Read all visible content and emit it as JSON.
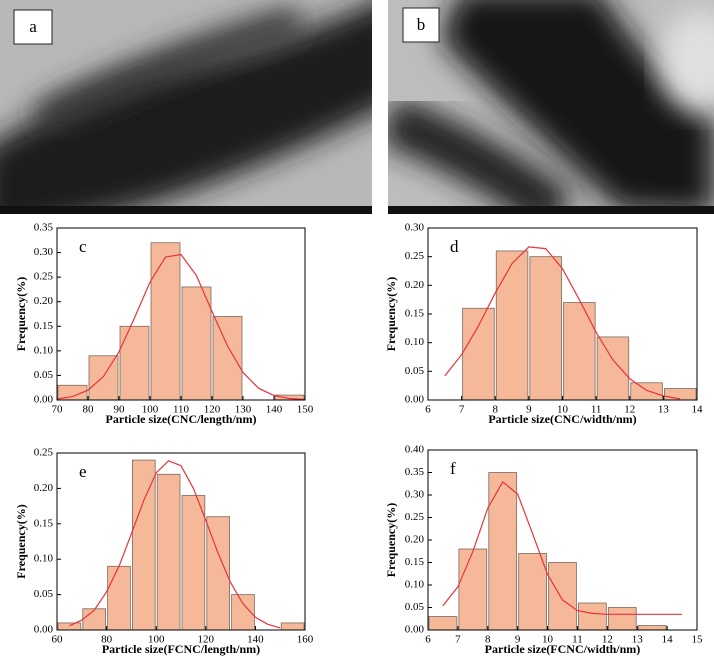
{
  "images": [
    {
      "label": "a"
    },
    {
      "label": "b"
    }
  ],
  "chart_data": [
    {
      "type": "histogram",
      "label": "c",
      "xlabel": "Particle size(CNC/length/nm)",
      "ylabel": "Frequency(%)",
      "bins": [
        70,
        80,
        90,
        100,
        110,
        120,
        130,
        140,
        150
      ],
      "values": [
        0.03,
        0.09,
        0.15,
        0.32,
        0.23,
        0.17,
        0,
        0.01
      ],
      "color": "#f5b898",
      "xlim": [
        70,
        150
      ],
      "xticks": [
        70,
        80,
        90,
        100,
        110,
        120,
        130,
        140,
        150
      ],
      "ylim": [
        0,
        0.35
      ],
      "yticks": [
        {
          "value": 0,
          "label": "0.00"
        },
        {
          "value": 0.05,
          "label": "0.05"
        },
        {
          "value": 0.1,
          "label": "0.10"
        },
        {
          "value": 0.15,
          "label": "0.15"
        },
        {
          "value": 0.2,
          "label": "0.20"
        },
        {
          "value": 0.25,
          "label": "0.25"
        },
        {
          "value": 0.3,
          "label": "0.30"
        },
        {
          "value": 0.35,
          "label": "0.35"
        }
      ],
      "fit": {
        "color": "#e8333d",
        "x": [
          70,
          75,
          80,
          85,
          90,
          95,
          100,
          105,
          110,
          115,
          120,
          125,
          130,
          135,
          140,
          145,
          150
        ],
        "values": [
          0.002,
          0.007,
          0.02,
          0.048,
          0.098,
          0.167,
          0.24,
          0.291,
          0.296,
          0.253,
          0.18,
          0.11,
          0.056,
          0.024,
          0.009,
          0.003,
          0.001
        ]
      }
    },
    {
      "type": "histogram",
      "label": "d",
      "xlabel": "Particle size(CNC/width/nm)",
      "ylabel": "Frequency(%)",
      "bins": [
        7,
        8,
        9,
        10,
        11,
        12,
        13,
        14
      ],
      "values": [
        0.16,
        0.26,
        0.25,
        0.17,
        0.11,
        0.03,
        0.02
      ],
      "color": "#f5b898",
      "xlim": [
        6,
        14
      ],
      "xticks": [
        6,
        7,
        8,
        9,
        10,
        11,
        12,
        13,
        14
      ],
      "ylim": [
        0,
        0.3
      ],
      "yticks": [
        {
          "value": 0,
          "label": "0.00"
        },
        {
          "value": 0.05,
          "label": "0.05"
        },
        {
          "value": 0.1,
          "label": "0.10"
        },
        {
          "value": 0.15,
          "label": "0.15"
        },
        {
          "value": 0.2,
          "label": "0.20"
        },
        {
          "value": 0.25,
          "label": "0.25"
        },
        {
          "value": 0.3,
          "label": "0.30"
        }
      ],
      "fit": {
        "color": "#e8333d",
        "x": [
          6.5,
          7,
          7.5,
          8,
          8.5,
          9,
          9.5,
          10,
          10.5,
          11,
          11.5,
          12,
          12.5,
          13,
          13.5
        ],
        "values": [
          0.042,
          0.079,
          0.129,
          0.187,
          0.238,
          0.267,
          0.264,
          0.229,
          0.175,
          0.118,
          0.07,
          0.037,
          0.017,
          0.007,
          0.002
        ]
      }
    },
    {
      "type": "histogram",
      "label": "e",
      "xlabel": "Particle size(FCNC/length/nm)",
      "ylabel": "Frequency(%)",
      "bins": [
        60,
        70,
        80,
        90,
        100,
        110,
        120,
        130,
        140,
        150,
        160
      ],
      "values": [
        0.01,
        0.03,
        0.09,
        0.24,
        0.22,
        0.19,
        0.16,
        0.05,
        0,
        0.01
      ],
      "color": "#f5b898",
      "xlim": [
        60,
        160
      ],
      "xticks": [
        60,
        80,
        100,
        120,
        140,
        160
      ],
      "ylim": [
        0,
        0.25
      ],
      "yticks": [
        {
          "value": 0,
          "label": "0.00"
        },
        {
          "value": 0.05,
          "label": "0.05"
        },
        {
          "value": 0.1,
          "label": "0.10"
        },
        {
          "value": 0.15,
          "label": "0.15"
        },
        {
          "value": 0.2,
          "label": "0.20"
        },
        {
          "value": 0.25,
          "label": "0.25"
        }
      ],
      "fit": {
        "color": "#e8333d",
        "x": [
          65,
          70,
          75,
          80,
          85,
          90,
          95,
          100,
          105,
          110,
          115,
          120,
          125,
          130,
          135,
          140,
          145,
          150
        ],
        "values": [
          0.006,
          0.014,
          0.028,
          0.054,
          0.09,
          0.136,
          0.183,
          0.222,
          0.239,
          0.232,
          0.2,
          0.155,
          0.108,
          0.067,
          0.037,
          0.018,
          0.008,
          0.003
        ]
      }
    },
    {
      "type": "histogram",
      "label": "f",
      "xlabel": "Particle size(FCNC/width/nm)",
      "ylabel": "Frequency(%)",
      "bins": [
        6,
        7,
        8,
        9,
        10,
        11,
        12,
        13,
        14
      ],
      "values": [
        0.03,
        0.18,
        0.35,
        0.17,
        0.15,
        0.06,
        0.05,
        0.01
      ],
      "color": "#f5b898",
      "xlim": [
        6,
        15
      ],
      "xticks": [
        6,
        7,
        8,
        9,
        10,
        11,
        12,
        13,
        14,
        15
      ],
      "ylim": [
        0,
        0.4
      ],
      "yticks": [
        {
          "value": 0,
          "label": "0.00"
        },
        {
          "value": 0.05,
          "label": "0.05"
        },
        {
          "value": 0.1,
          "label": "0.10"
        },
        {
          "value": 0.15,
          "label": "0.15"
        },
        {
          "value": 0.2,
          "label": "0.20"
        },
        {
          "value": 0.25,
          "label": "0.25"
        },
        {
          "value": 0.3,
          "label": "0.30"
        },
        {
          "value": 0.35,
          "label": "0.35"
        },
        {
          "value": 0.4,
          "label": "0.40"
        }
      ],
      "fit": {
        "color": "#e8333d",
        "x": [
          6.5,
          7,
          7.5,
          8,
          8.5,
          9,
          9.5,
          10,
          10.5,
          11,
          11.5,
          12,
          13,
          14,
          14.5
        ],
        "values": [
          0.054,
          0.096,
          0.174,
          0.271,
          0.329,
          0.302,
          0.214,
          0.123,
          0.067,
          0.043,
          0.037,
          0.035,
          0.035,
          0.035,
          0.035
        ]
      }
    }
  ]
}
